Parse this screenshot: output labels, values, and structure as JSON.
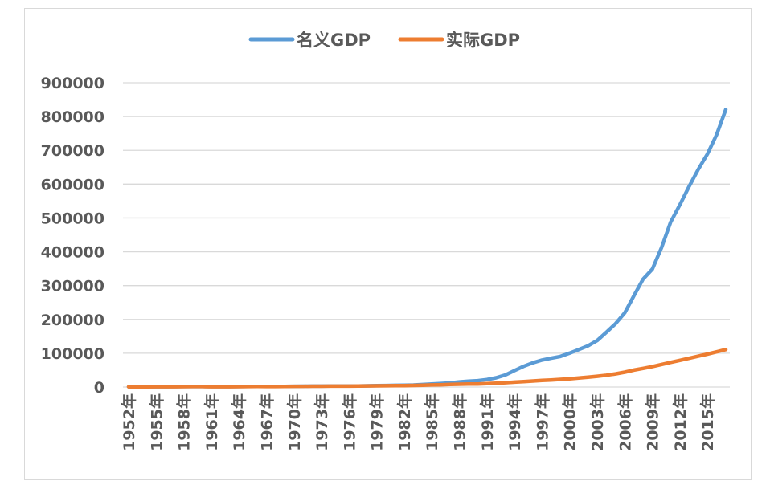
{
  "chart_data": {
    "type": "line",
    "title": "",
    "xlabel": "",
    "ylabel": "",
    "legend_position": "top",
    "grid": true,
    "ylim": [
      0,
      900000
    ],
    "yticks": [
      "0",
      "100000",
      "200000",
      "300000",
      "400000",
      "500000",
      "600000",
      "700000",
      "800000",
      "900000"
    ],
    "x": [
      1952,
      1953,
      1954,
      1955,
      1956,
      1957,
      1958,
      1959,
      1960,
      1961,
      1962,
      1963,
      1964,
      1965,
      1966,
      1967,
      1968,
      1969,
      1970,
      1971,
      1972,
      1973,
      1974,
      1975,
      1976,
      1977,
      1978,
      1979,
      1980,
      1981,
      1982,
      1983,
      1984,
      1985,
      1986,
      1987,
      1988,
      1989,
      1990,
      1991,
      1992,
      1993,
      1994,
      1995,
      1996,
      1997,
      1998,
      1999,
      2000,
      2001,
      2002,
      2003,
      2004,
      2005,
      2006,
      2007,
      2008,
      2009,
      2010,
      2011,
      2012,
      2013,
      2014,
      2015,
      2016,
      2017
    ],
    "xticks": [
      "1952年",
      "1955年",
      "1958年",
      "1961年",
      "1964年",
      "1967年",
      "1970年",
      "1973年",
      "1976年",
      "1979年",
      "1982年",
      "1985年",
      "1988年",
      "1991年",
      "1994年",
      "1997年",
      "2000年",
      "2003年",
      "2006年",
      "2009年",
      "2012年",
      "2015年"
    ],
    "series": [
      {
        "name": "名义GDP",
        "color": "#5b9bd5",
        "values": [
          679,
          824,
          859,
          910,
          1028,
          1069,
          1308,
          1440,
          1457,
          1220,
          1149,
          1233,
          1454,
          1716,
          1868,
          1773,
          1723,
          1937,
          2252,
          2426,
          2518,
          2720,
          2789,
          2997,
          2943,
          3202,
          3679,
          4101,
          4588,
          4936,
          5373,
          6021,
          7279,
          9099,
          10376,
          12175,
          15180,
          17180,
          18873,
          22006,
          27195,
          35673,
          48638,
          61340,
          71814,
          79715,
          85196,
          90564,
          100280,
          110863,
          121717,
          137422,
          161840,
          187319,
          219439,
          270092,
          319245,
          348518,
          412119,
          487940,
          538580,
          592963,
          643563,
          688858,
          746395,
          821000
        ]
      },
      {
        "name": "实际GDP",
        "color": "#ed7d31",
        "values": [
          679,
          785,
          819,
          875,
          1006,
          1058,
          1283,
          1398,
          1398,
          1017,
          960,
          1058,
          1251,
          1464,
          1621,
          1528,
          1466,
          1713,
          2044,
          2189,
          2272,
          2449,
          2506,
          2724,
          2680,
          2884,
          3221,
          3466,
          3737,
          3927,
          4281,
          4743,
          5464,
          6196,
          6748,
          7537,
          8381,
          8733,
          9074,
          9918,
          11326,
          12900,
          14577,
          16181,
          17783,
          19419,
          20933,
          22545,
          24462,
          26492,
          28903,
          31793,
          35004,
          38995,
          43948,
          50188,
          55056,
          60231,
          66616,
          73011,
          78779,
          84924,
          91123,
          97411,
          103937,
          111005
        ]
      }
    ]
  }
}
